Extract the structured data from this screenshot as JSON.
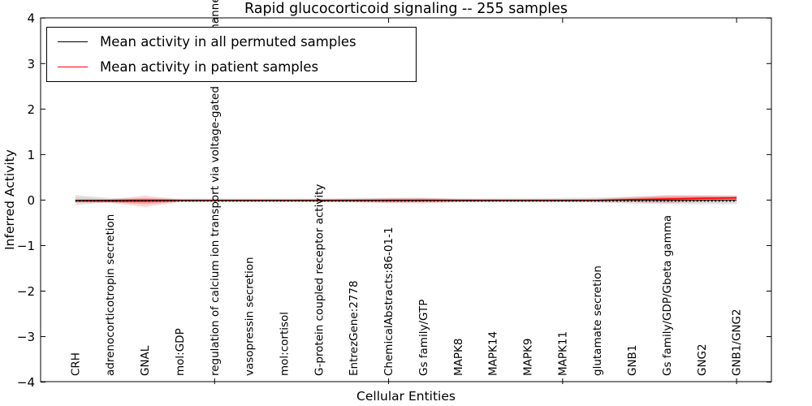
{
  "chart_data": {
    "type": "line",
    "title": "Rapid glucocorticoid signaling -- 255 samples",
    "xlabel": "Cellular Entities",
    "ylabel": "Inferred Activity",
    "ylim": [
      -4,
      4
    ],
    "yticks": [
      -4,
      -3,
      -2,
      -1,
      0,
      1,
      2,
      3,
      4
    ],
    "grid": false,
    "legend_position": "upper left",
    "categories": [
      "CRH",
      "adrenocorticotropin secretion",
      "GNAL",
      "mol:GDP",
      "regulation of calcium ion transport via voltage-gated calcium channel",
      "vasopressin secretion",
      "mol:cortisol",
      "G-protein coupled receptor activity",
      "EntrezGene:2778",
      "ChemicalAbstracts:86-01-1",
      "Gs family/GTP",
      "MAPK8",
      "MAPK14",
      "MAPK9",
      "MAPK11",
      "glutamate secretion",
      "GNB1",
      "Gs family/GDP/Gbeta gamma",
      "GNG2",
      "GNB1/GNG2"
    ],
    "series": [
      {
        "name": "Mean activity in all permuted samples",
        "color": "#000000",
        "line_style": "dotted",
        "mean": [
          0,
          0,
          0,
          0,
          0,
          0,
          0,
          0,
          0,
          0,
          0,
          0,
          0,
          0,
          0,
          0,
          0,
          0,
          0,
          0
        ],
        "std": [
          0.11,
          0.045,
          0.036,
          0.036,
          0.036,
          0.036,
          0.036,
          0.039,
          0.045,
          0.05,
          0.045,
          0.039,
          0.039,
          0.039,
          0.045,
          0.054,
          0.08,
          0.09,
          0.09,
          0.09
        ],
        "band_color": "#999999"
      },
      {
        "name": "Mean activity in patient samples",
        "color": "#ff0000",
        "line_style": "solid",
        "mean": [
          -0.02,
          -0.025,
          -0.025,
          -0.015,
          -0.015,
          -0.015,
          -0.015,
          -0.015,
          -0.013,
          -0.012,
          -0.01,
          -0.012,
          -0.012,
          -0.012,
          -0.012,
          -0.008,
          0.01,
          0.025,
          0.04,
          0.048
        ],
        "std": [
          0.027,
          0.036,
          0.125,
          0.027,
          0.021,
          0.021,
          0.021,
          0.027,
          0.036,
          0.054,
          0.0625,
          0.036,
          0.027,
          0.027,
          0.027,
          0.036,
          0.054,
          0.09,
          0.071,
          0.054
        ],
        "band_color": "#ff0000"
      }
    ],
    "xticks_at_category_index": [
      4,
      9,
      14,
      19
    ]
  },
  "legend": {
    "items": [
      {
        "label": "Mean activity in all permuted samples",
        "color": "#000000"
      },
      {
        "label": "Mean activity in patient samples",
        "color": "#ff0000"
      }
    ]
  }
}
